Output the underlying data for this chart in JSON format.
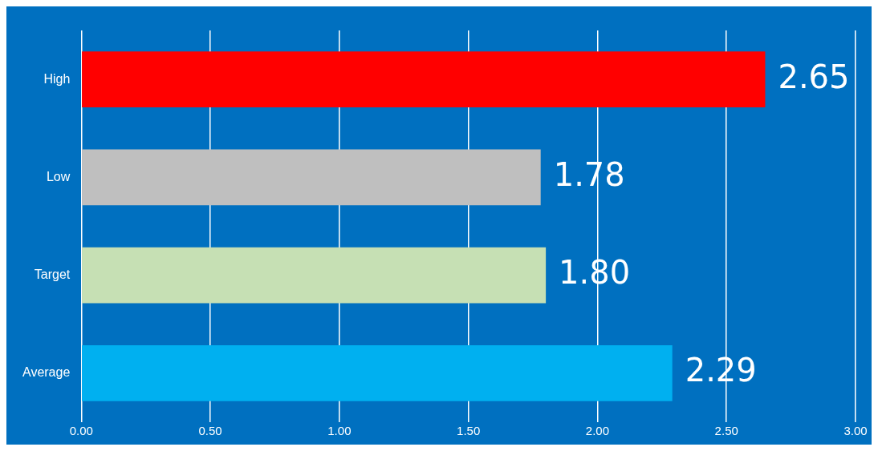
{
  "chart_data": {
    "type": "bar",
    "orientation": "horizontal",
    "categories": [
      "High",
      "Low",
      "Target",
      "Average"
    ],
    "values": [
      2.65,
      1.78,
      1.8,
      2.29
    ],
    "colors": [
      "#ff0000",
      "#bfbfbf",
      "#c6e0b4",
      "#00b0f0"
    ],
    "value_labels": [
      "2.65",
      "1.78",
      "1.80",
      "2.29"
    ],
    "xlim": [
      0,
      3
    ],
    "xticks": [
      {
        "value": 0,
        "label": "0.00"
      },
      {
        "value": 0.5,
        "label": "0.50"
      },
      {
        "value": 1,
        "label": "1.00"
      },
      {
        "value": 1.5,
        "label": "1.50"
      },
      {
        "value": 2,
        "label": "2.00"
      },
      {
        "value": 2.5,
        "label": "2.50"
      },
      {
        "value": 3,
        "label": "3.00"
      }
    ],
    "grid": "x",
    "legend": false
  }
}
